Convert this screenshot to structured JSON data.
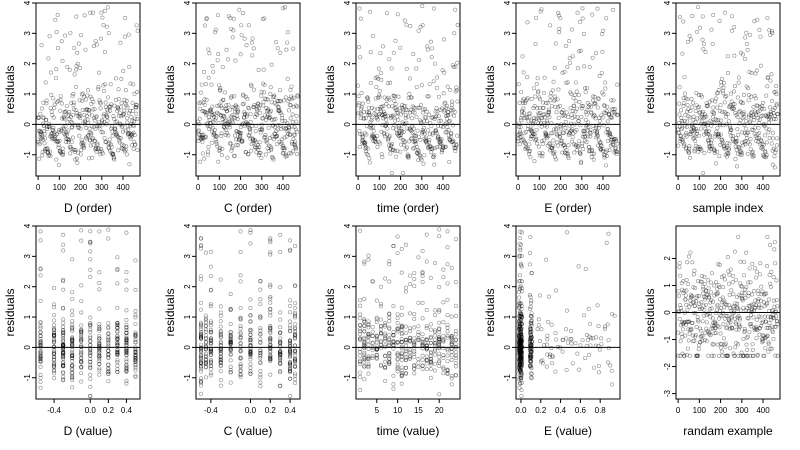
{
  "chart_data": [
    {
      "type": "scatter",
      "xlabel": "D (order)",
      "ylabel": "residuals",
      "xlim": [
        -10,
        480
      ],
      "ylim": [
        -1.7,
        4
      ],
      "xticks": [
        "0",
        "100",
        "200",
        "300",
        "400"
      ],
      "yticks": [
        "-1",
        "0",
        "1",
        "2",
        "3",
        "4"
      ],
      "zero_line": 0,
      "n_points": 470,
      "x_kind": "index",
      "y_pattern": "residual_trend"
    },
    {
      "type": "scatter",
      "xlabel": "C (order)",
      "ylabel": "residuals",
      "xlim": [
        -10,
        480
      ],
      "ylim": [
        -1.7,
        4
      ],
      "xticks": [
        "0",
        "100",
        "200",
        "300",
        "400"
      ],
      "yticks": [
        "-1",
        "0",
        "1",
        "2",
        "3",
        "4"
      ],
      "zero_line": 0,
      "n_points": 470,
      "x_kind": "index",
      "y_pattern": "residual_trend"
    },
    {
      "type": "scatter",
      "xlabel": "time (order)",
      "ylabel": "residuals",
      "xlim": [
        -10,
        480
      ],
      "ylim": [
        -1.7,
        4
      ],
      "xticks": [
        "0",
        "100",
        "200",
        "300",
        "400"
      ],
      "yticks": [
        "-1",
        "0",
        "1",
        "2",
        "3",
        "4"
      ],
      "zero_line": 0,
      "n_points": 470,
      "x_kind": "index",
      "y_pattern": "residual_trend"
    },
    {
      "type": "scatter",
      "xlabel": "E (order)",
      "ylabel": "residuals",
      "xlim": [
        -10,
        480
      ],
      "ylim": [
        -1.7,
        4
      ],
      "xticks": [
        "0",
        "100",
        "200",
        "300",
        "400"
      ],
      "yticks": [
        "-1",
        "0",
        "1",
        "2",
        "3",
        "4"
      ],
      "zero_line": 0,
      "n_points": 470,
      "x_kind": "index",
      "y_pattern": "residual_trend"
    },
    {
      "type": "scatter",
      "xlabel": "sample index",
      "ylabel": "residuals",
      "xlim": [
        -10,
        480
      ],
      "ylim": [
        -1.7,
        4
      ],
      "xticks": [
        "0",
        "100",
        "200",
        "300",
        "400"
      ],
      "yticks": [
        "-1",
        "0",
        "1",
        "2",
        "3",
        "4"
      ],
      "zero_line": 0,
      "n_points": 470,
      "x_kind": "index",
      "y_pattern": "residual_trend"
    },
    {
      "type": "scatter",
      "xlabel": "D (value)",
      "ylabel": "residuals",
      "xlim": [
        -0.6,
        0.55
      ],
      "ylim": [
        -1.7,
        4
      ],
      "xticks": [
        "-0.4",
        "0.0",
        "0.2",
        "0.4"
      ],
      "xtick_values": [
        -0.4,
        0.0,
        0.2,
        0.4
      ],
      "yticks": [
        "-1",
        "0",
        "1",
        "2",
        "3",
        "4"
      ],
      "zero_line": 0,
      "n_points": 470,
      "x_kind": "discrete",
      "x_levels": [
        -0.55,
        -0.4,
        -0.3,
        -0.2,
        -0.1,
        0.0,
        0.1,
        0.2,
        0.3,
        0.4,
        0.5
      ],
      "y_pattern": "residual"
    },
    {
      "type": "scatter",
      "xlabel": "C (value)",
      "ylabel": "residuals",
      "xlim": [
        -0.55,
        0.5
      ],
      "ylim": [
        -1.7,
        4
      ],
      "xticks": [
        "-0.4",
        "0.0",
        "0.2",
        "0.4"
      ],
      "xtick_values": [
        -0.4,
        0.0,
        0.2,
        0.4
      ],
      "yticks": [
        "-1",
        "0",
        "1",
        "2",
        "3",
        "4"
      ],
      "zero_line": 0,
      "n_points": 470,
      "x_kind": "discrete",
      "x_levels": [
        -0.5,
        -0.45,
        -0.4,
        -0.3,
        -0.2,
        -0.1,
        0.0,
        0.1,
        0.2,
        0.3,
        0.4,
        0.45
      ],
      "y_pattern": "residual"
    },
    {
      "type": "scatter",
      "xlabel": "time (value)",
      "ylabel": "residuals",
      "xlim": [
        0,
        25
      ],
      "ylim": [
        -1.7,
        4
      ],
      "xticks": [
        "5",
        "10",
        "15",
        "20"
      ],
      "xtick_values": [
        5,
        10,
        15,
        20
      ],
      "yticks": [
        "-1",
        "0",
        "1",
        "2",
        "3",
        "4"
      ],
      "zero_line": 0,
      "n_points": 470,
      "x_kind": "discrete",
      "x_levels": [
        1,
        2,
        3,
        4,
        5,
        6,
        7,
        8,
        9,
        10,
        11,
        12,
        13,
        14,
        15,
        16,
        17,
        18,
        19,
        20,
        21,
        22,
        23,
        24
      ],
      "y_pattern": "residual"
    },
    {
      "type": "scatter",
      "xlabel": "E (value)",
      "ylabel": "residuals",
      "xlim": [
        -0.05,
        1.0
      ],
      "ylim": [
        -1.7,
        4
      ],
      "xticks": [
        "0.0",
        "0.2",
        "0.4",
        "0.6",
        "0.8"
      ],
      "xtick_values": [
        0.0,
        0.2,
        0.4,
        0.6,
        0.8
      ],
      "yticks": [
        "-1",
        "0",
        "1",
        "2",
        "3",
        "4"
      ],
      "zero_line": 0,
      "n_points": 470,
      "x_kind": "skewed",
      "y_pattern": "residual"
    },
    {
      "type": "scatter",
      "xlabel": "randam example",
      "ylabel": "residuals",
      "xlim": [
        -10,
        480
      ],
      "ylim": [
        -3.2,
        3.2
      ],
      "xticks": [
        "0",
        "100",
        "200",
        "300",
        "400"
      ],
      "yticks": [
        "-3",
        "-2",
        "-1",
        "0",
        "1",
        "2"
      ],
      "zero_line": 0,
      "n_points": 470,
      "x_kind": "index",
      "y_pattern": "normal"
    }
  ]
}
